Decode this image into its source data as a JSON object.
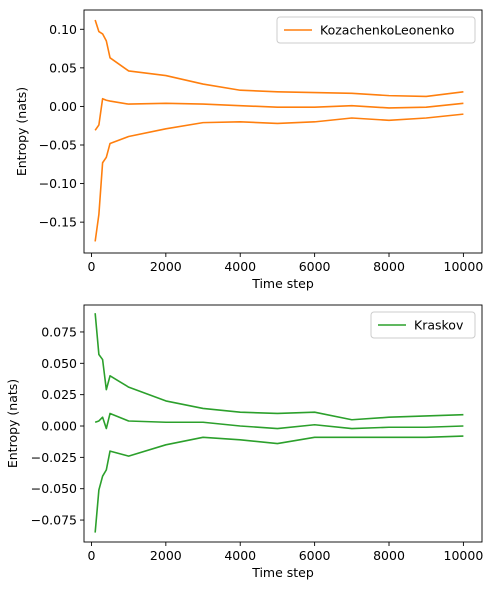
{
  "chart_data": [
    {
      "type": "line",
      "xlabel": "Time step",
      "ylabel": "Entropy (nats)",
      "xlim": [
        -200,
        10500
      ],
      "ylim": [
        -0.19,
        0.125
      ],
      "xticks": [
        0,
        2000,
        4000,
        6000,
        8000,
        10000
      ],
      "yticks": [
        -0.15,
        -0.1,
        -0.05,
        0.0,
        0.05,
        0.1
      ],
      "ytick_labels": [
        "−0.15",
        "−0.10",
        "−0.05",
        "0.00",
        "0.05",
        "0.10"
      ],
      "legend": {
        "label": "KozachenkoLeonenko",
        "placement": "upper-right"
      },
      "color": "#ff7f0e",
      "x": [
        100,
        200,
        300,
        400,
        500,
        1000,
        2000,
        3000,
        4000,
        5000,
        6000,
        7000,
        8000,
        9000,
        10000
      ],
      "series": [
        {
          "role": "upper",
          "values": [
            0.112,
            0.097,
            0.094,
            0.085,
            0.063,
            0.046,
            0.04,
            0.029,
            0.021,
            0.019,
            0.018,
            0.017,
            0.014,
            0.013,
            0.019
          ]
        },
        {
          "role": "mean",
          "values": [
            -0.031,
            -0.024,
            0.01,
            0.008,
            0.007,
            0.003,
            0.004,
            0.003,
            0.001,
            -0.001,
            -0.001,
            0.001,
            -0.002,
            -0.001,
            0.004
          ]
        },
        {
          "role": "lower",
          "values": [
            -0.175,
            -0.14,
            -0.073,
            -0.066,
            -0.048,
            -0.039,
            -0.029,
            -0.021,
            -0.02,
            -0.022,
            -0.02,
            -0.015,
            -0.018,
            -0.015,
            -0.01
          ]
        }
      ]
    },
    {
      "type": "line",
      "xlabel": "Time step",
      "ylabel": "Entropy (nats)",
      "xlim": [
        -200,
        10500
      ],
      "ylim": [
        -0.0925,
        0.0965
      ],
      "xticks": [
        0,
        2000,
        4000,
        6000,
        8000,
        10000
      ],
      "yticks": [
        -0.075,
        -0.05,
        -0.025,
        0.0,
        0.025,
        0.05,
        0.075
      ],
      "ytick_labels": [
        "−0.075",
        "−0.050",
        "−0.025",
        "0.000",
        "0.025",
        "0.050",
        "0.075"
      ],
      "legend": {
        "label": "Kraskov",
        "placement": "upper-right"
      },
      "color": "#2ca02c",
      "x": [
        100,
        200,
        300,
        400,
        500,
        1000,
        2000,
        3000,
        4000,
        5000,
        6000,
        7000,
        8000,
        9000,
        10000
      ],
      "series": [
        {
          "role": "upper",
          "values": [
            0.09,
            0.057,
            0.053,
            0.029,
            0.04,
            0.031,
            0.02,
            0.014,
            0.011,
            0.01,
            0.011,
            0.005,
            0.007,
            0.008,
            0.009
          ]
        },
        {
          "role": "mean",
          "values": [
            0.003,
            0.004,
            0.007,
            -0.002,
            0.01,
            0.004,
            0.003,
            0.003,
            0.0,
            -0.002,
            0.001,
            -0.002,
            -0.001,
            -0.001,
            0.0
          ]
        },
        {
          "role": "lower",
          "values": [
            -0.085,
            -0.051,
            -0.04,
            -0.035,
            -0.02,
            -0.024,
            -0.015,
            -0.009,
            -0.011,
            -0.014,
            -0.009,
            -0.009,
            -0.009,
            -0.009,
            -0.008
          ]
        }
      ]
    }
  ]
}
